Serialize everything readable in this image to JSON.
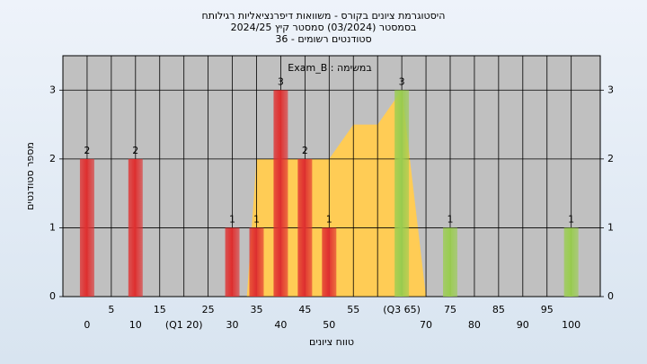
{
  "chart_data": {
    "type": "bar",
    "title_lines": [
      "היסטוגרמת ציונים בקורס - משוואות דיפרנציאליות רגילותח",
      "בסמסטר (03/2024) סמסטר קיץ 2024/25",
      "סטודנטים רשומים - 36"
    ],
    "annotation": "במשימה : Exam_B",
    "y_label": "מספר סטודנטים",
    "x_label": "טווח ציונים",
    "categories": [
      "0",
      "5",
      "10",
      "15",
      "(Q1 20)",
      "25",
      "30",
      "35",
      "40",
      "45",
      "50",
      "55",
      null,
      "(Q3 65)",
      "70",
      "75",
      "80",
      "85",
      "90",
      "95",
      "100"
    ],
    "x": [
      0,
      5,
      10,
      15,
      20,
      25,
      30,
      35,
      40,
      45,
      50,
      55,
      60,
      65,
      70,
      75,
      80,
      85,
      90,
      95,
      100
    ],
    "values": [
      2,
      0,
      2,
      0,
      0,
      0,
      1,
      1,
      3,
      2,
      1,
      0,
      0,
      3,
      0,
      1,
      0,
      0,
      0,
      0,
      1
    ],
    "colors": [
      "#e03030",
      "#e03030",
      "#e03030",
      "#e03030",
      "#e03030",
      "#e03030",
      "#e03030",
      "#e03030",
      "#e03030",
      "#e03030",
      "#e03030",
      "#e03030",
      "#e03030",
      "#9acd50",
      "#9acd50",
      "#9acd50",
      "#9acd50",
      "#9acd50",
      "#9acd50",
      "#9acd50",
      "#9acd50"
    ],
    "area": {
      "x": [
        33,
        35,
        50,
        55,
        60,
        65,
        70
      ],
      "values": [
        0,
        2,
        2,
        2.5,
        2.5,
        3,
        0
      ],
      "color": "#ffcc55"
    },
    "xlim": [
      -5,
      106
    ],
    "ylim": [
      0,
      3.5
    ],
    "yticks": [
      0,
      1,
      2,
      3
    ],
    "grid": true
  }
}
